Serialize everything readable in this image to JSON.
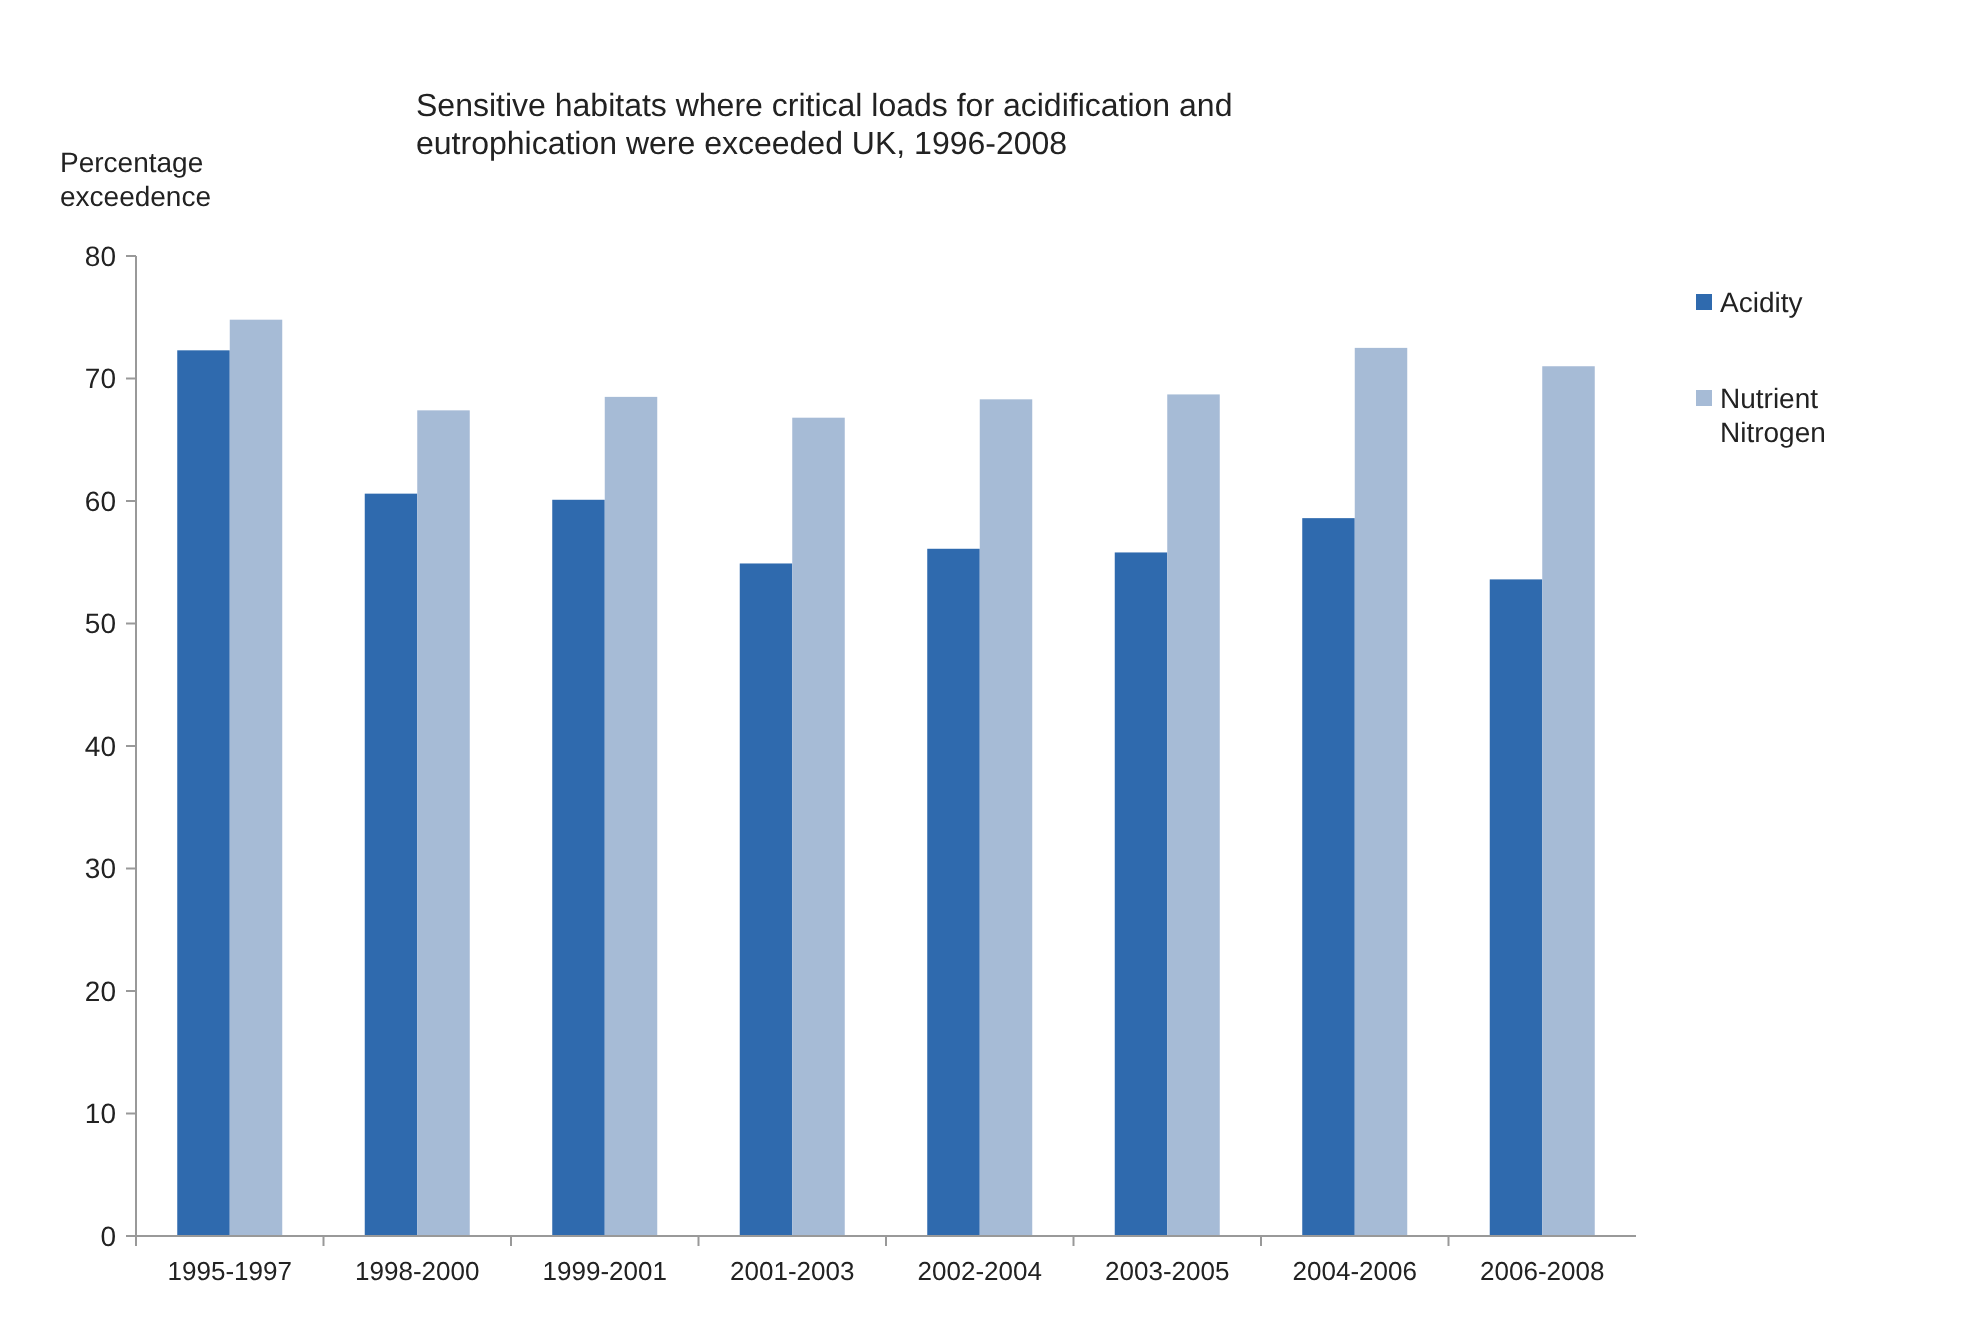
{
  "chart_data": {
    "type": "bar",
    "title": "Sensitive habitats where critical loads for acidification  and eutrophication were exceeded UK, 1996-2008",
    "ylabel": "Percentage exceedence",
    "categories": [
      "1995-1997",
      "1998-2000",
      "1999-2001",
      "2001-2003",
      "2002-2004",
      "2003-2005",
      "2004-2006",
      "2006-2008"
    ],
    "series": [
      {
        "name": "Acidity",
        "color": "#2f6aae",
        "values": [
          72.3,
          60.6,
          60.1,
          54.9,
          56.1,
          55.8,
          58.6,
          53.6
        ]
      },
      {
        "name": "Nutrient Nitrogen",
        "color": "#a6bbd6",
        "values": [
          74.8,
          67.4,
          68.5,
          66.8,
          68.3,
          68.7,
          72.5,
          71.0
        ]
      }
    ],
    "ylim": [
      0,
      80
    ],
    "yticks": [
      0,
      10,
      20,
      30,
      40,
      50,
      60,
      70,
      80
    ],
    "grid": false,
    "legend": "right"
  }
}
